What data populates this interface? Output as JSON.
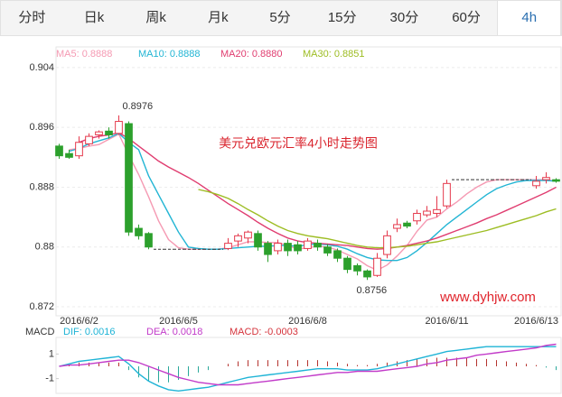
{
  "tabs": [
    "分时",
    "日k",
    "周k",
    "月k",
    "5分",
    "15分",
    "30分",
    "60分",
    "4h"
  ],
  "active_tab": "4h",
  "chart_data": [
    {
      "type": "candlestick",
      "title": "美元兑欧元汇率4小时走势图",
      "watermark": "www.dyhjw.com",
      "categories": [
        null,
        null,
        "2016/6/2",
        null,
        null,
        null,
        null,
        null,
        null,
        null,
        null,
        null,
        "2016/6/5",
        null,
        null,
        null,
        null,
        null,
        null,
        null,
        null,
        null,
        null,
        null,
        null,
        "2016/6/8",
        null,
        null,
        null,
        null,
        null,
        null,
        null,
        null,
        null,
        null,
        null,
        null,
        null,
        "2016/6/11",
        null,
        null,
        null,
        null,
        null,
        null,
        null,
        null,
        "2016/6/13",
        null,
        null
      ],
      "open": [
        0.8935,
        0.8925,
        0.8922,
        0.8938,
        0.895,
        0.8955,
        0.8952,
        0.8965,
        0.8825,
        0.8818,
        0.8797,
        0.8797,
        0.8797,
        0.8797,
        0.8797,
        0.8797,
        0.8797,
        0.8798,
        0.8808,
        0.8812,
        0.8818,
        0.8805,
        0.8795,
        0.8805,
        0.8803,
        0.8798,
        0.8805,
        0.88,
        0.8795,
        0.8785,
        0.8775,
        0.8768,
        0.8762,
        0.879,
        0.8825,
        0.8832,
        0.8835,
        0.8843,
        0.8845,
        0.8855,
        0.889,
        0.889,
        0.889,
        0.889,
        0.889,
        0.889,
        0.889,
        0.889,
        0.8882,
        0.889,
        0.889
      ],
      "high": [
        0.8938,
        0.893,
        0.8948,
        0.8952,
        0.8956,
        0.896,
        0.8976,
        0.8968,
        0.883,
        0.882,
        0.8797,
        0.8797,
        0.8797,
        0.8797,
        0.8797,
        0.8797,
        0.8797,
        0.8812,
        0.8818,
        0.8822,
        0.8822,
        0.8808,
        0.881,
        0.881,
        0.8808,
        0.8812,
        0.881,
        0.8804,
        0.8798,
        0.8788,
        0.8778,
        0.877,
        0.8792,
        0.8822,
        0.8838,
        0.8835,
        0.885,
        0.8855,
        0.8868,
        0.889,
        0.889,
        0.889,
        0.889,
        0.889,
        0.889,
        0.889,
        0.889,
        0.889,
        0.8895,
        0.89,
        0.8892
      ],
      "low": [
        0.8918,
        0.8918,
        0.8918,
        0.8935,
        0.8945,
        0.8945,
        0.895,
        0.8815,
        0.881,
        0.8797,
        0.8797,
        0.8797,
        0.8797,
        0.8797,
        0.8797,
        0.8797,
        0.8797,
        0.8796,
        0.88,
        0.8805,
        0.8795,
        0.878,
        0.879,
        0.8788,
        0.879,
        0.8795,
        0.8795,
        0.8788,
        0.878,
        0.8765,
        0.8762,
        0.8756,
        0.876,
        0.8785,
        0.882,
        0.8825,
        0.883,
        0.884,
        0.884,
        0.8852,
        0.889,
        0.889,
        0.889,
        0.889,
        0.889,
        0.889,
        0.889,
        0.889,
        0.8878,
        0.8885,
        0.8886
      ],
      "close": [
        0.8922,
        0.892,
        0.894,
        0.8948,
        0.8954,
        0.895,
        0.8968,
        0.882,
        0.8815,
        0.88,
        0.8797,
        0.8797,
        0.8797,
        0.8797,
        0.8797,
        0.8797,
        0.8797,
        0.8805,
        0.8815,
        0.882,
        0.88,
        0.879,
        0.8805,
        0.8795,
        0.8795,
        0.8808,
        0.88,
        0.8792,
        0.8785,
        0.877,
        0.8768,
        0.876,
        0.8785,
        0.8815,
        0.883,
        0.8828,
        0.8845,
        0.8848,
        0.885,
        0.8885,
        0.889,
        0.889,
        0.889,
        0.889,
        0.889,
        0.889,
        0.889,
        0.889,
        0.8888,
        0.8893,
        0.8888
      ],
      "up_color": "#e5394c",
      "down_color": "#2ca02c",
      "flat_color": "#333333",
      "max_label": 0.8976,
      "min_label": 0.8756,
      "series": [
        {
          "name": "MA5: 0.8888",
          "color": "#f59ab3",
          "values": [
            null,
            0.893,
            0.8932,
            0.8935,
            0.8937,
            0.8944,
            0.8951,
            0.8923,
            0.8897,
            0.8867,
            0.8835,
            0.881,
            0.8799,
            0.8797,
            0.8797,
            0.8797,
            0.8797,
            0.8799,
            0.8803,
            0.8807,
            0.8807,
            0.8806,
            0.8806,
            0.8802,
            0.8797,
            0.8799,
            0.8801,
            0.88,
            0.8796,
            0.879,
            0.8784,
            0.8775,
            0.8769,
            0.8776,
            0.8788,
            0.8802,
            0.8821,
            0.8836,
            0.884,
            0.8851,
            0.886,
            0.8871,
            0.888,
            0.8887,
            0.889,
            0.889,
            0.889,
            0.889,
            0.889,
            0.889,
            0.8888
          ]
        },
        {
          "name": "MA10: 0.8888",
          "color": "#22b5d4",
          "values": [
            null,
            0.8928,
            0.8932,
            0.8938,
            0.8942,
            0.8946,
            0.8952,
            0.894,
            0.893,
            0.8895,
            0.887,
            0.8845,
            0.882,
            0.88,
            0.8798,
            0.8797,
            0.8797,
            0.8798,
            0.8799,
            0.88,
            0.8801,
            0.8801,
            0.8802,
            0.8802,
            0.8801,
            0.8803,
            0.8804,
            0.8803,
            0.8801,
            0.8797,
            0.8791,
            0.8786,
            0.8783,
            0.8782,
            0.8782,
            0.8786,
            0.8795,
            0.8806,
            0.8818,
            0.883,
            0.884,
            0.885,
            0.886,
            0.887,
            0.8878,
            0.8883,
            0.8887,
            0.8889,
            0.8889,
            0.8889,
            0.8888
          ]
        },
        {
          "name": "MA20: 0.8880",
          "color": "#e03d70",
          "values": [
            null,
            null,
            0.894,
            0.8945,
            0.8948,
            0.895,
            0.8953,
            0.8945,
            0.8935,
            0.8925,
            0.8915,
            0.8907,
            0.89,
            0.8893,
            0.8885,
            0.8876,
            0.8867,
            0.8858,
            0.885,
            0.8842,
            0.8833,
            0.8825,
            0.8818,
            0.8812,
            0.8808,
            0.8806,
            0.8805,
            0.8804,
            0.8803,
            0.8802,
            0.88,
            0.8798,
            0.8797,
            0.8798,
            0.88,
            0.8802,
            0.8805,
            0.8808,
            0.8812,
            0.8817,
            0.8822,
            0.8827,
            0.8832,
            0.8838,
            0.8843,
            0.8849,
            0.8855,
            0.8861,
            0.8867,
            0.8873,
            0.888
          ]
        },
        {
          "name": "MA30: 0.8851",
          "color": "#9dbd23",
          "values": [
            null,
            null,
            null,
            null,
            null,
            null,
            null,
            null,
            null,
            null,
            null,
            null,
            null,
            null,
            0.8877,
            0.8874,
            0.887,
            0.8865,
            0.8858,
            0.885,
            0.8843,
            0.8835,
            0.8828,
            0.8822,
            0.8818,
            0.8815,
            0.8813,
            0.8811,
            0.8808,
            0.8805,
            0.8802,
            0.88,
            0.8799,
            0.8799,
            0.88,
            0.8801,
            0.8803,
            0.8805,
            0.8807,
            0.881,
            0.8813,
            0.8816,
            0.8819,
            0.8822,
            0.8826,
            0.883,
            0.8834,
            0.8838,
            0.8842,
            0.8847,
            0.8851
          ]
        }
      ],
      "ylim": [
        0.8708,
        0.9064
      ],
      "yticks": [
        0.904,
        0.896,
        0.888,
        0.88,
        0.872
      ],
      "grid": true
    },
    {
      "type": "macd",
      "label": "MACD",
      "up_color": "#b5342f",
      "down_color": "#2aa89b",
      "series": [
        {
          "name": "DIF: 0.0016",
          "color": "#1fb4d6",
          "kind": "line",
          "values": [
            0,
            0.0002,
            0.0004,
            0.0005,
            0.0006,
            0.0007,
            0.0008,
            0.0002,
            -0.0006,
            -0.0012,
            -0.0016,
            -0.0019,
            -0.002,
            -0.0019,
            -0.0018,
            -0.0017,
            -0.0015,
            -0.0013,
            -0.0011,
            -0.0009,
            -0.0008,
            -0.0007,
            -0.0006,
            -0.0005,
            -0.0004,
            -0.0003,
            -0.0002,
            -0.0002,
            -0.0002,
            -0.0003,
            -0.0003,
            -0.0003,
            -0.0002,
            0,
            0.0002,
            0.0004,
            0.0006,
            0.0008,
            0.001,
            0.0012,
            0.0013,
            0.0014,
            0.0015,
            0.0016,
            0.0016,
            0.0016,
            0.0016,
            0.0016,
            0.0016,
            0.0016,
            0.0016
          ]
        },
        {
          "name": "DEA: 0.0018",
          "color": "#c23bc9",
          "kind": "line",
          "values": [
            0,
            0.0001,
            0.0001,
            0.0002,
            0.0003,
            0.0004,
            0.0005,
            0.0005,
            0.0003,
            0,
            -0.0003,
            -0.0006,
            -0.0009,
            -0.0011,
            -0.0013,
            -0.0014,
            -0.0015,
            -0.0015,
            -0.0015,
            -0.0014,
            -0.0013,
            -0.0012,
            -0.0011,
            -0.001,
            -0.0009,
            -0.0008,
            -0.0007,
            -0.0006,
            -0.0005,
            -0.0005,
            -0.0004,
            -0.0004,
            -0.0004,
            -0.0003,
            -0.0002,
            -0.0001,
            0,
            0.0002,
            0.0003,
            0.0005,
            0.0006,
            0.0007,
            0.0009,
            0.001,
            0.0011,
            0.0012,
            0.0013,
            0.0014,
            0.0015,
            0.0017,
            0.0018
          ]
        },
        {
          "name": "MACD: -0.0003",
          "color": "#d5343c",
          "kind": "bar",
          "values": [
            0,
            0.0001,
            0.0003,
            0.0003,
            0.0003,
            0.0003,
            0.0003,
            -0.0003,
            -0.0009,
            -0.0012,
            -0.0013,
            -0.0013,
            -0.0011,
            -0.0008,
            -0.0005,
            -0.0003,
            0,
            0.0002,
            0.0004,
            0.0005,
            0.0005,
            0.0005,
            0.0005,
            0.0005,
            0.0005,
            0.0005,
            0.0005,
            0.0004,
            0.0003,
            0.0002,
            0.0001,
            0.0001,
            0.0002,
            0.0003,
            0.0004,
            0.0005,
            0.0006,
            0.0006,
            0.0007,
            0.0007,
            0.0007,
            0.0007,
            0.0006,
            0.0006,
            0.0005,
            0.0004,
            0.0003,
            0.0002,
            0.0001,
            -0.0001,
            -0.0003
          ]
        }
      ],
      "ylim": [
        -0.0022,
        0.0022
      ],
      "yticks": [
        {
          "value": 0.001,
          "label": "1"
        },
        {
          "value": -0.001,
          "label": "-1"
        }
      ]
    }
  ]
}
